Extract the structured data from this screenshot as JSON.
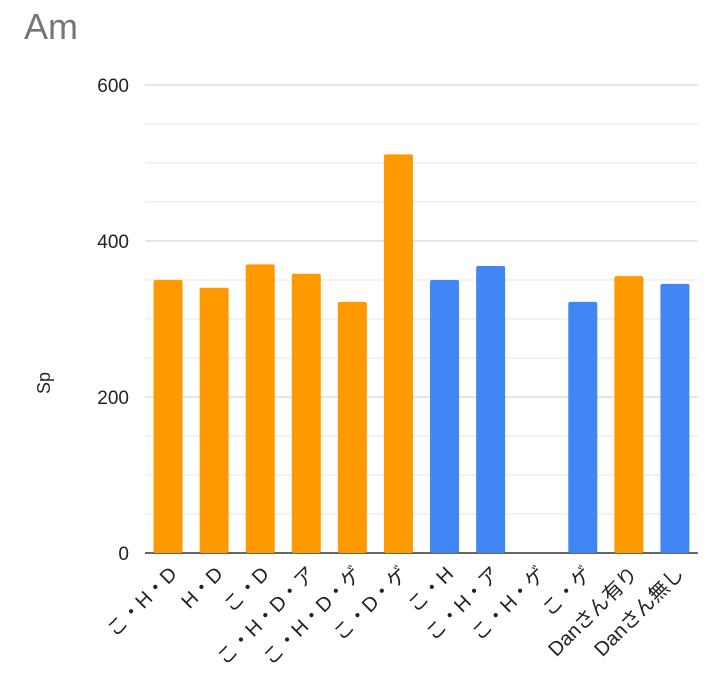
{
  "chart_data": {
    "type": "bar",
    "title": "Am",
    "xlabel": "",
    "ylabel": "Sp",
    "ylim": [
      0,
      600
    ],
    "yticks": [
      0,
      200,
      400,
      600
    ],
    "minor_gridlines": true,
    "legend": "none",
    "colors": {
      "orange": "#FF9900",
      "blue": "#4285F4",
      "gridline": "#cccccc",
      "minor_gridline": "#e6e6e6",
      "baseline": "#333333"
    },
    "categories": [
      "こ・H・D",
      "H・D",
      "こ・D",
      "こ・H・D・ア",
      "こ・H・D・ゲ",
      "こ・D・ゲ",
      "こ・H",
      "こ・H・ア",
      "こ・H・ゲ",
      "こ・ゲ",
      "Danさん有り",
      "Danさん無し"
    ],
    "values": [
      350,
      340,
      370,
      358,
      322,
      511,
      350,
      368,
      0,
      322,
      355,
      345
    ],
    "bar_colors": [
      "#FF9900",
      "#FF9900",
      "#FF9900",
      "#FF9900",
      "#FF9900",
      "#FF9900",
      "#4285F4",
      "#4285F4",
      "#4285F4",
      "#4285F4",
      "#FF9900",
      "#4285F4"
    ]
  }
}
